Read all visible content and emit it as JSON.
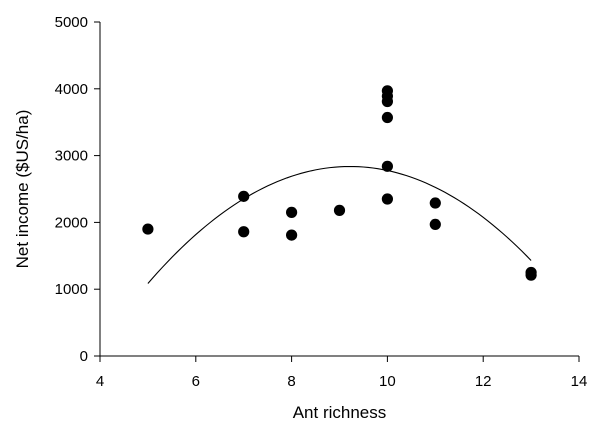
{
  "chart_data": {
    "type": "scatter",
    "title": "",
    "xlabel": "Ant richness",
    "ylabel": "Net income ($US/ha)",
    "xlim": [
      4,
      14
    ],
    "ylim": [
      0,
      5000
    ],
    "xticks": [
      4,
      6,
      8,
      10,
      12,
      14
    ],
    "yticks": [
      0,
      1000,
      2000,
      3000,
      4000,
      5000
    ],
    "grid": false,
    "legend": "none",
    "points": [
      {
        "x": 5,
        "y": 1900
      },
      {
        "x": 7,
        "y": 2390
      },
      {
        "x": 7,
        "y": 1860
      },
      {
        "x": 8,
        "y": 2150
      },
      {
        "x": 8,
        "y": 1810
      },
      {
        "x": 9,
        "y": 2180
      },
      {
        "x": 10,
        "y": 3970
      },
      {
        "x": 10,
        "y": 3890
      },
      {
        "x": 10,
        "y": 3810
      },
      {
        "x": 10,
        "y": 3570
      },
      {
        "x": 10,
        "y": 2840
      },
      {
        "x": 10,
        "y": 2350
      },
      {
        "x": 11,
        "y": 2290
      },
      {
        "x": 11,
        "y": 1970
      },
      {
        "x": 13,
        "y": 1250
      },
      {
        "x": 13,
        "y": 1210
      }
    ],
    "trendline": {
      "type": "quadratic",
      "x_range": [
        5,
        13
      ],
      "samples": [
        [
          5,
          1070
        ],
        [
          7,
          2380
        ],
        [
          9.2,
          2850
        ],
        [
          11,
          2480
        ],
        [
          13,
          1450
        ]
      ]
    },
    "colors": {
      "marker": "#000000",
      "line": "#000000",
      "axis": "#000000"
    }
  }
}
